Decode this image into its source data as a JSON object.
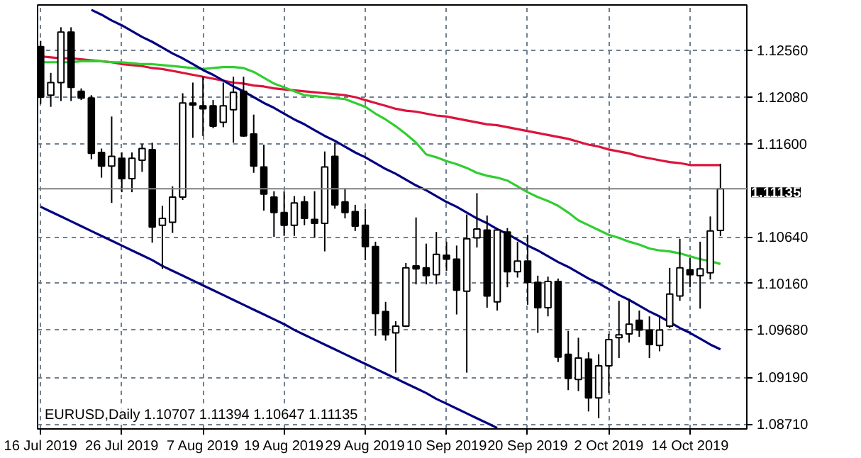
{
  "chart_data": {
    "type": "candlestick",
    "title": "EURUSD,Daily  1.10707 1.11394 1.10647 1.11135",
    "categories": [
      "16 Jul 2019",
      null,
      null,
      null,
      null,
      null,
      null,
      null,
      "26 Jul 2019",
      null,
      null,
      null,
      null,
      null,
      null,
      null,
      "7 Aug 2019",
      null,
      null,
      null,
      null,
      null,
      null,
      null,
      "19 Aug 2019",
      null,
      null,
      null,
      null,
      null,
      null,
      null,
      "29 Aug 2019",
      null,
      null,
      null,
      null,
      null,
      null,
      null,
      "10 Sep 2019",
      null,
      null,
      null,
      null,
      null,
      null,
      null,
      "20 Sep 2019",
      null,
      null,
      null,
      null,
      null,
      null,
      null,
      "2 Oct 2019",
      null,
      null,
      null,
      null,
      null,
      null,
      null,
      "14 Oct 2019",
      null,
      null,
      null
    ],
    "ylim": [
      1.0866,
      1.1303
    ],
    "yticks": [
      {
        "value": 1.0871,
        "label": "1.08710"
      },
      {
        "value": 1.0919,
        "label": "1.09190"
      },
      {
        "value": 1.0968,
        "label": "1.09680"
      },
      {
        "value": 1.1016,
        "label": "1.10160"
      },
      {
        "value": 1.1064,
        "label": "1.10640"
      },
      {
        "value": 1.116,
        "label": "1.11600"
      },
      {
        "value": 1.1208,
        "label": "1.12080"
      },
      {
        "value": 1.1256,
        "label": "1.12560"
      }
    ],
    "grid": true,
    "ohlc": [
      [
        1.126,
        1.1266,
        1.1201,
        1.1208
      ],
      [
        1.121,
        1.1233,
        1.1198,
        1.1223
      ],
      [
        1.1223,
        1.128,
        1.1204,
        1.1275
      ],
      [
        1.1275,
        1.128,
        1.1204,
        1.1218
      ],
      [
        1.1214,
        1.1217,
        1.1205,
        1.1207
      ],
      [
        1.1207,
        1.121,
        1.1144,
        1.115
      ],
      [
        1.1151,
        1.1155,
        1.1125,
        1.1137
      ],
      [
        1.1137,
        1.1188,
        1.1099,
        1.1147
      ],
      [
        1.1145,
        1.1151,
        1.111,
        1.1124
      ],
      [
        1.1124,
        1.1151,
        1.111,
        1.1145
      ],
      [
        1.1143,
        1.116,
        1.1131,
        1.1155
      ],
      [
        1.1154,
        1.1161,
        1.1058,
        1.1074
      ],
      [
        1.1076,
        1.1096,
        1.1031,
        1.1083
      ],
      [
        1.1079,
        1.1116,
        1.1068,
        1.1105
      ],
      [
        1.1105,
        1.1212,
        1.1102,
        1.1202
      ],
      [
        1.1202,
        1.1223,
        1.1166,
        1.12
      ],
      [
        1.1199,
        1.1229,
        1.1168,
        1.1196
      ],
      [
        1.1199,
        1.1205,
        1.1176,
        1.1178
      ],
      [
        1.1182,
        1.1223,
        1.1177,
        1.1199
      ],
      [
        1.1195,
        1.1229,
        1.1161,
        1.1213
      ],
      [
        1.1214,
        1.1229,
        1.1167,
        1.1168
      ],
      [
        1.117,
        1.119,
        1.113,
        1.1137
      ],
      [
        1.1136,
        1.1159,
        1.1091,
        1.1108
      ],
      [
        1.1105,
        1.1111,
        1.1064,
        1.1089
      ],
      [
        1.1089,
        1.1111,
        1.1065,
        1.1076
      ],
      [
        1.1076,
        1.1106,
        1.1065,
        1.1099
      ],
      [
        1.11,
        1.1106,
        1.1076,
        1.1083
      ],
      [
        1.1082,
        1.1111,
        1.1063,
        1.1078
      ],
      [
        1.1078,
        1.1152,
        1.1049,
        1.1136
      ],
      [
        1.1147,
        1.1161,
        1.1093,
        1.1097
      ],
      [
        1.11,
        1.1114,
        1.1083,
        1.1089
      ],
      [
        1.109,
        1.1097,
        1.107,
        1.1075
      ],
      [
        1.1076,
        1.1093,
        1.104,
        1.1054
      ],
      [
        1.1054,
        1.1059,
        1.0962,
        1.0985
      ],
      [
        1.0987,
        1.0997,
        1.0957,
        1.0963
      ],
      [
        1.0965,
        1.0977,
        1.0924,
        1.0972
      ],
      [
        1.0972,
        1.1037,
        1.0971,
        1.1032
      ],
      [
        1.1034,
        1.1084,
        1.1015,
        1.1031
      ],
      [
        1.1032,
        1.1057,
        1.1015,
        1.1024
      ],
      [
        1.1025,
        1.1069,
        1.1015,
        1.1046
      ],
      [
        1.1045,
        1.1059,
        1.1029,
        1.1041
      ],
      [
        1.1041,
        1.1055,
        1.0984,
        1.1009
      ],
      [
        1.1008,
        1.1087,
        1.0924,
        1.1062
      ],
      [
        1.1063,
        1.1109,
        1.1053,
        1.1072
      ],
      [
        1.1071,
        1.1086,
        1.0991,
        1.1003
      ],
      [
        1.0997,
        1.1073,
        1.0988,
        1.1071
      ],
      [
        1.1069,
        1.1073,
        1.1012,
        1.1028
      ],
      [
        1.1028,
        1.1059,
        1.1022,
        1.1039
      ],
      [
        1.1039,
        1.1066,
        1.0994,
        1.1017
      ],
      [
        1.1017,
        1.1024,
        1.0965,
        1.0991
      ],
      [
        1.0991,
        1.1023,
        1.0982,
        1.1018
      ],
      [
        1.1018,
        1.1021,
        1.0935,
        1.094
      ],
      [
        1.0943,
        1.0967,
        1.0906,
        1.0918
      ],
      [
        1.0917,
        1.096,
        1.0905,
        1.0939
      ],
      [
        1.0938,
        1.0945,
        1.0884,
        1.0898
      ],
      [
        1.0898,
        1.0943,
        1.0877,
        1.0931
      ],
      [
        1.0931,
        1.0964,
        1.0903,
        1.0958
      ],
      [
        1.096,
        1.0998,
        1.0939,
        1.0963
      ],
      [
        1.0964,
        1.1,
        1.0955,
        1.0974
      ],
      [
        1.0978,
        1.0988,
        1.0961,
        1.0968
      ],
      [
        1.0968,
        1.0982,
        1.0939,
        1.0953
      ],
      [
        1.0952,
        1.0982,
        1.0946,
        1.0968
      ],
      [
        1.0972,
        1.1032,
        1.097,
        1.1005
      ],
      [
        1.1003,
        1.1062,
        1.0998,
        1.1032
      ],
      [
        1.103,
        1.1042,
        1.1012,
        1.1025
      ],
      [
        1.1024,
        1.1059,
        1.099,
        1.1031
      ],
      [
        1.1027,
        1.1085,
        1.102,
        1.107
      ],
      [
        1.10707,
        1.11394,
        1.10647,
        1.11135
      ]
    ],
    "series": [
      {
        "type": "line",
        "color": "#dc143c",
        "values": [
          1.125,
          1.1249,
          1.1248,
          1.1248,
          1.1247,
          1.1246,
          1.1245,
          1.1244,
          1.1242,
          1.1241,
          1.124,
          1.1238,
          1.1237,
          1.1235,
          1.1233,
          1.1231,
          1.1229,
          1.1227,
          1.1225,
          1.1223,
          1.1222,
          1.122,
          1.1219,
          1.1217,
          1.1216,
          1.1215,
          1.1214,
          1.1213,
          1.1212,
          1.1211,
          1.121,
          1.1208,
          1.1205,
          1.1202,
          1.1199,
          1.1196,
          1.1194,
          1.1193,
          1.1191,
          1.1189,
          1.1188,
          1.1186,
          1.1184,
          1.1182,
          1.118,
          1.1179,
          1.1177,
          1.1175,
          1.1173,
          1.1171,
          1.1169,
          1.1167,
          1.1165,
          1.1162,
          1.1159,
          1.1157,
          1.1154,
          1.1152,
          1.115,
          1.1147,
          1.1145,
          1.1143,
          1.1141,
          1.114,
          1.1138,
          1.1138,
          1.1138,
          1.1138
        ]
      },
      {
        "type": "line",
        "color": "#32cd32",
        "values": [
          1.1244,
          1.1244,
          1.1244,
          1.1244,
          1.1245,
          1.1245,
          1.1245,
          1.1244,
          1.1244,
          1.1243,
          1.1242,
          1.1242,
          1.1241,
          1.124,
          1.1239,
          1.1238,
          1.1237,
          1.1238,
          1.1239,
          1.1239,
          1.1238,
          1.1234,
          1.1228,
          1.1222,
          1.1218,
          1.1214,
          1.121,
          1.1209,
          1.1208,
          1.1207,
          1.1206,
          1.1202,
          1.1198,
          1.1191,
          1.1185,
          1.1178,
          1.117,
          1.1161,
          1.1149,
          1.1146,
          1.1142,
          1.1139,
          1.1135,
          1.113,
          1.1127,
          1.1125,
          1.1122,
          1.1116,
          1.111,
          1.1105,
          1.1101,
          1.1096,
          1.1089,
          1.1081,
          1.1076,
          1.1071,
          1.1066,
          1.1063,
          1.1059,
          1.1056,
          1.1052,
          1.105,
          1.1049,
          1.1047,
          1.1044,
          1.1041,
          1.1039,
          1.1036
        ]
      },
      {
        "type": "line",
        "color": "#000080",
        "values": [
          null,
          null,
          null,
          null,
          null,
          1.1298,
          1.1293,
          1.1287,
          1.1282,
          1.1276,
          1.127,
          1.1265,
          1.1259,
          1.1253,
          1.1248,
          1.1242,
          1.1236,
          1.1231,
          1.1225,
          1.1219,
          1.1214,
          1.1208,
          1.1202,
          1.1197,
          1.1191,
          1.1185,
          1.118,
          1.1174,
          1.1168,
          1.1163,
          1.1157,
          1.1151,
          1.1146,
          1.114,
          1.1134,
          1.1129,
          1.1123,
          1.1117,
          1.1112,
          1.1106,
          1.11,
          1.1095,
          1.1089,
          1.1083,
          1.1078,
          1.1072,
          1.1067,
          1.1061,
          1.1055,
          1.105,
          1.1044,
          1.1038,
          1.1033,
          1.1027,
          1.1021,
          1.1016,
          1.101,
          1.1004,
          1.0999,
          1.0993,
          1.0987,
          1.0982,
          1.0976,
          1.097,
          1.0965,
          1.0959,
          1.0953,
          1.0948
        ]
      },
      {
        "type": "line",
        "color": "#000080",
        "values": [
          1.1095,
          1.109,
          1.1085,
          1.108,
          1.1075,
          1.107,
          1.1065,
          1.106,
          1.1055,
          1.105,
          1.1045,
          1.104,
          1.1034,
          1.1029,
          1.1024,
          1.1019,
          1.1014,
          1.1009,
          1.1004,
          1.0999,
          1.0994,
          1.0989,
          1.0984,
          1.0979,
          1.0974,
          1.0968,
          1.0963,
          1.0958,
          1.0953,
          1.0948,
          1.0943,
          1.0938,
          1.0933,
          1.0928,
          1.0923,
          1.0918,
          1.0913,
          1.0908,
          1.0903,
          1.0897,
          1.0892,
          1.0887,
          1.0882,
          1.0877,
          1.0872,
          1.0867,
          null,
          null,
          null,
          null,
          null,
          null,
          null,
          null,
          null,
          null,
          null,
          null,
          null,
          null,
          null,
          null,
          null,
          null,
          null,
          null,
          null,
          null
        ]
      }
    ],
    "ref_lines": [
      {
        "axis": "y",
        "value": 1.11135,
        "label": "1.11135",
        "color": "#808080"
      }
    ]
  }
}
